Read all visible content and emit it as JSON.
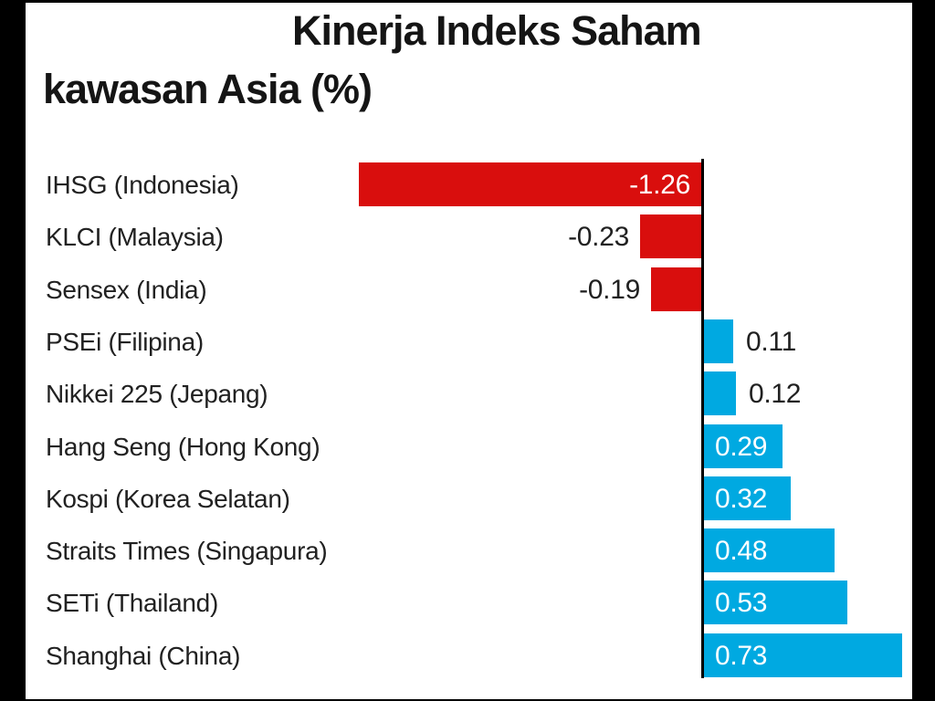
{
  "title": {
    "line1": "Kinerja Indeks Saham",
    "line2": "kawasan Asia (%)"
  },
  "chart_data": {
    "type": "bar",
    "orientation": "horizontal",
    "title": "Kinerja Indeks Saham kawasan Asia (%)",
    "xlabel": "",
    "ylabel": "",
    "categories": [
      "IHSG (Indonesia)",
      "KLCI (Malaysia)",
      "Sensex (India)",
      "PSEi (Filipina)",
      "Nikkei 225 (Jepang)",
      "Hang Seng (Hong Kong)",
      "Kospi (Korea Selatan)",
      "Straits Times (Singapura)",
      "SETi (Thailand)",
      "Shanghai (China)"
    ],
    "values": [
      -1.26,
      -0.23,
      -0.19,
      0.11,
      0.12,
      0.29,
      0.32,
      0.48,
      0.53,
      0.73
    ],
    "value_labels": [
      "-1.26",
      "-0.23",
      "-0.19",
      "0.11",
      "0.12",
      "0.29",
      "0.32",
      "0.48",
      "0.53",
      "0.73"
    ],
    "negative_color": "#d90e0d",
    "positive_color": "#00a9e1",
    "axis_color": "#000000",
    "text_color": "#212121",
    "inside_label_color": "#ffffff",
    "grid": false,
    "legend": false,
    "xlim": [
      -1.4,
      0.85
    ]
  }
}
